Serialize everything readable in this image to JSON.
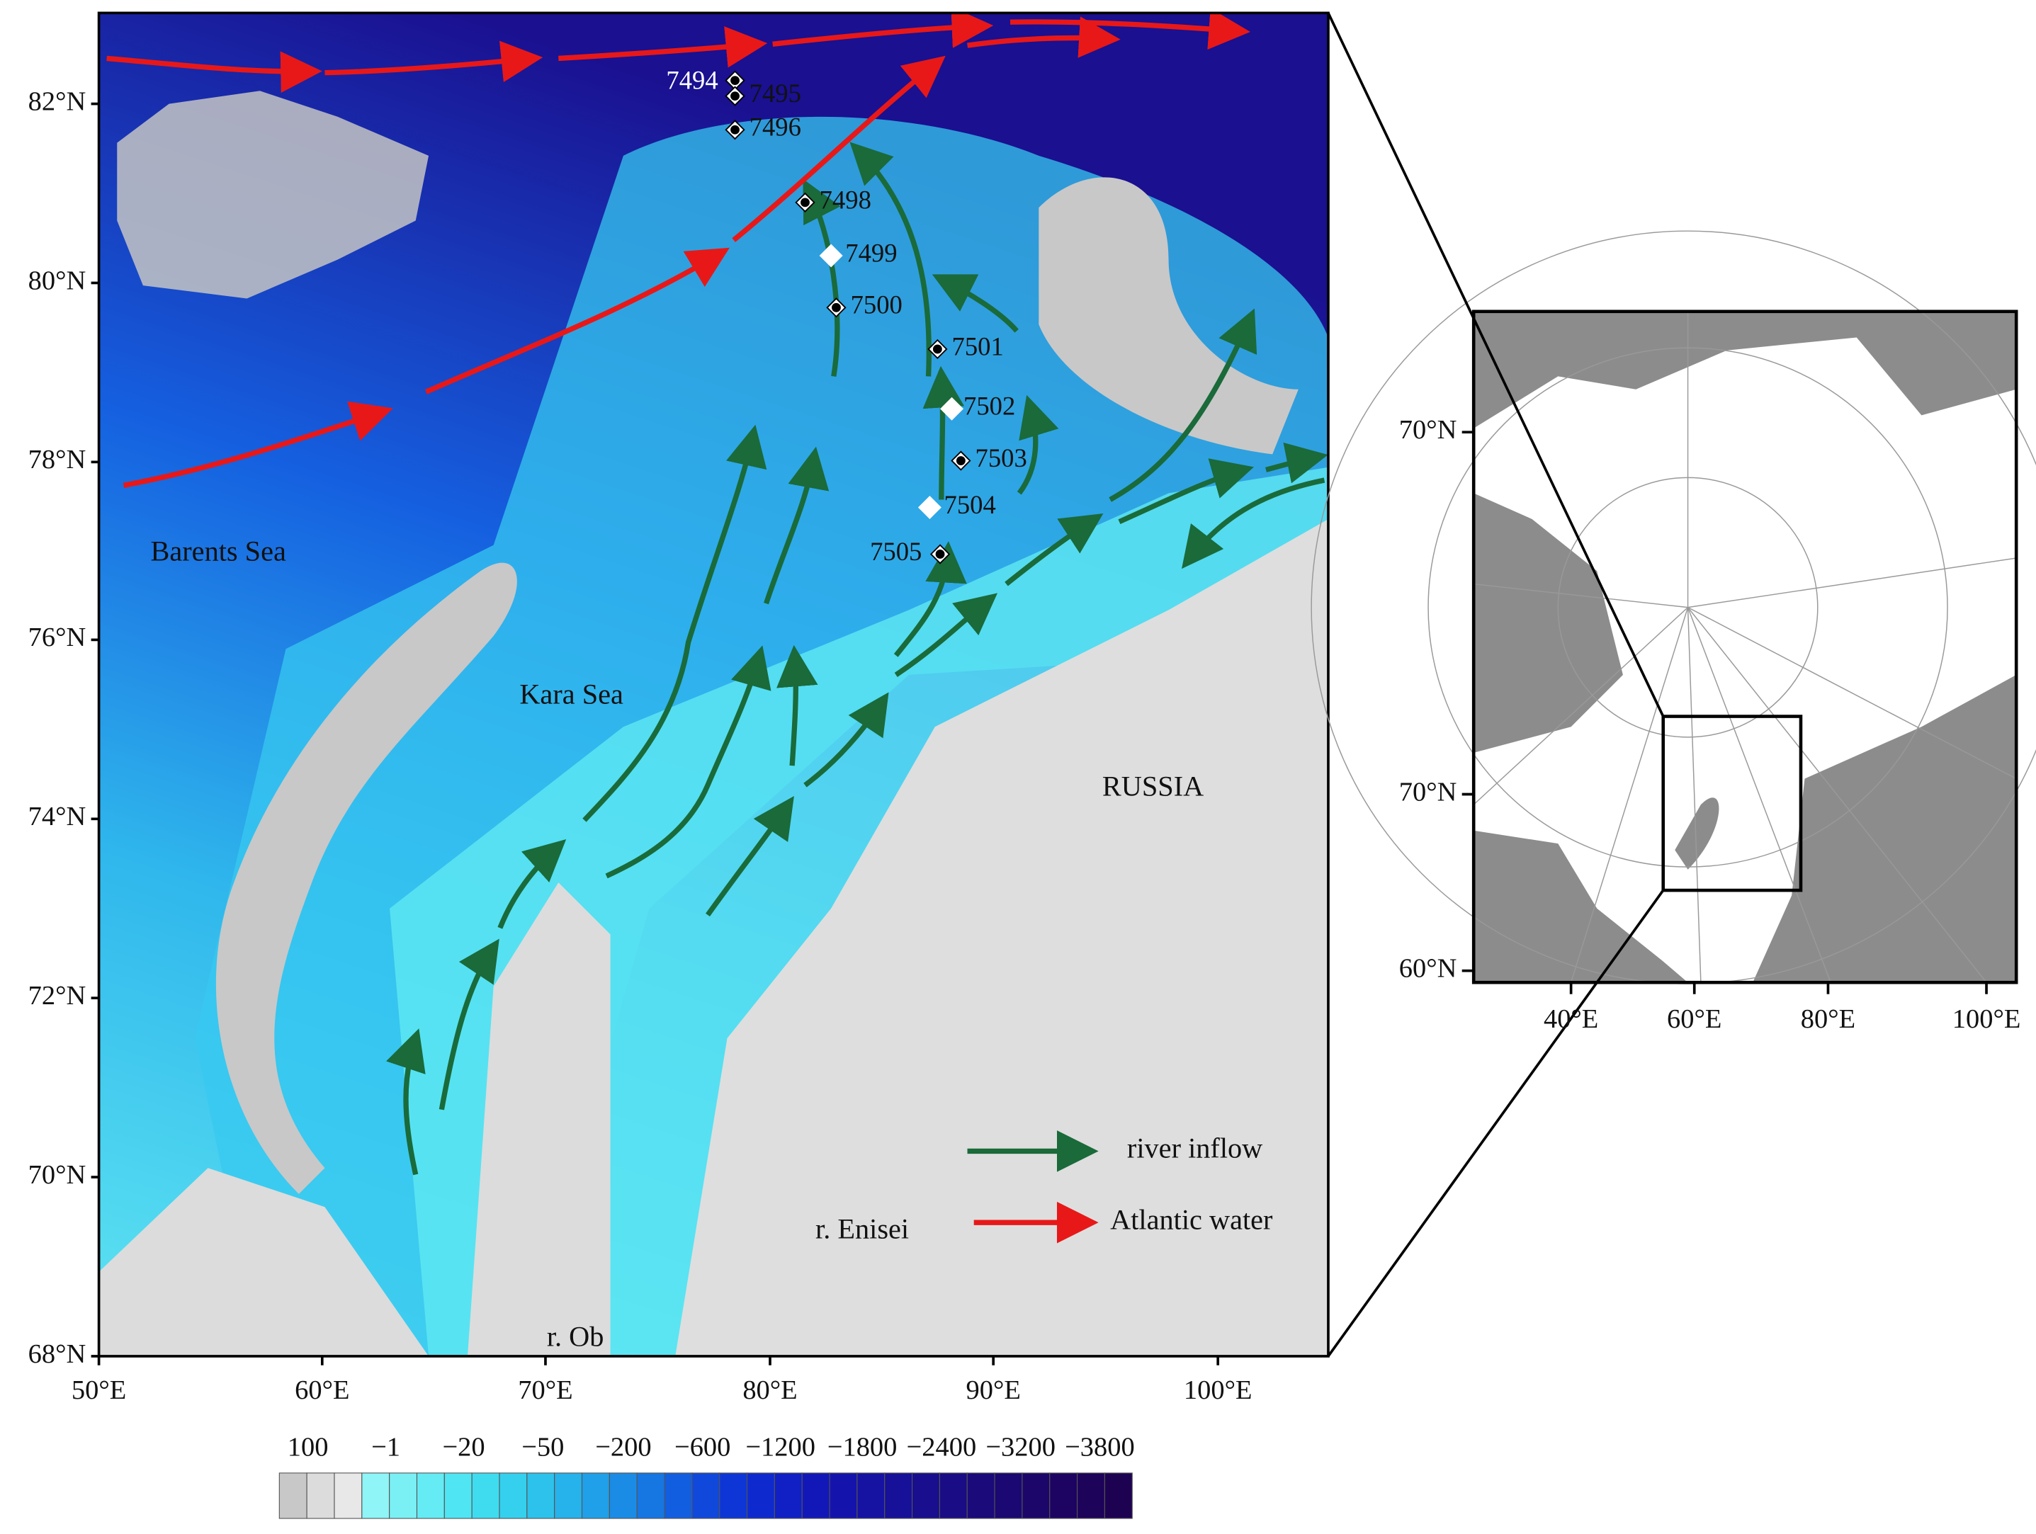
{
  "main_map": {
    "lat_labels": [
      "82°N",
      "80°N",
      "78°N",
      "76°N",
      "74°N",
      "72°N",
      "70°N",
      "68°N"
    ],
    "lon_labels": [
      "50°E",
      "60°E",
      "70°E",
      "80°E",
      "90°E",
      "100°E"
    ],
    "places": [
      "Barents Sea",
      "Kara Sea",
      "RUSSIA",
      "r. Enisei",
      "r. Ob"
    ],
    "stations": [
      "7494",
      "7495",
      "7496",
      "7498",
      "7499",
      "7500",
      "7501",
      "7502",
      "7503",
      "7504",
      "7505"
    ]
  },
  "legend": {
    "items": [
      "river inflow",
      "Atlantic water"
    ]
  },
  "colorbar": {
    "labels": [
      "100",
      "−1",
      "−20",
      "−50",
      "−200",
      "−600",
      "−1200",
      "−1800",
      "−2400",
      "−3200",
      "−3800"
    ]
  },
  "inset_map": {
    "lat_labels": [
      "70°N",
      "70°N",
      "60°N"
    ],
    "lon_labels": [
      "40°E",
      "60°E",
      "80°E",
      "100°E"
    ]
  }
}
